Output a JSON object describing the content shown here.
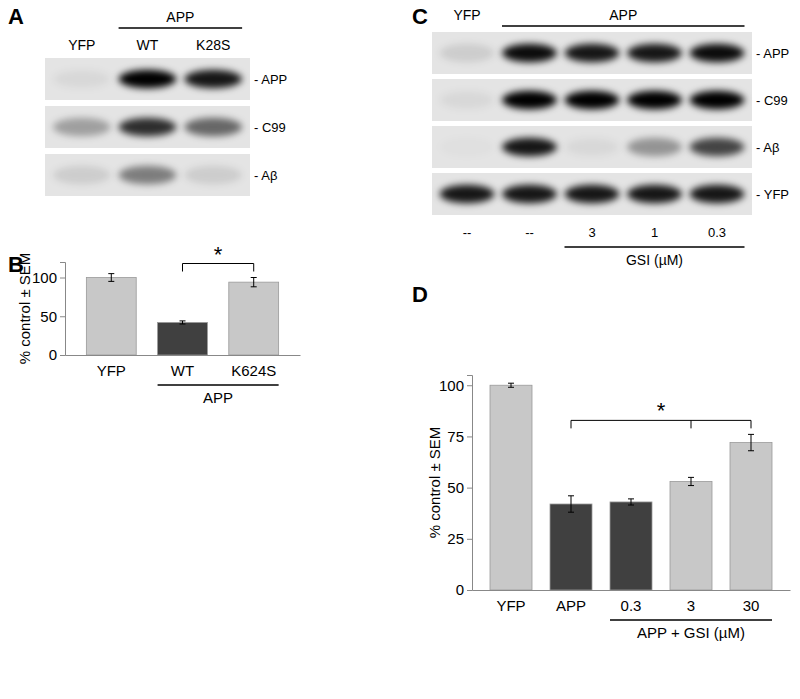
{
  "chart_data": [
    {
      "panel": "B",
      "type": "bar",
      "categories": [
        "YFP",
        "WT",
        "K624S"
      ],
      "values": [
        100,
        42,
        94
      ],
      "errors": [
        5,
        2,
        6
      ],
      "colors": [
        "#c8c8c8",
        "#404040",
        "#c8c8c8"
      ],
      "y_label": "% control ± SEM",
      "ylim": [
        0,
        120
      ],
      "yticks": [
        0,
        50,
        100
      ],
      "groups": [
        {
          "label": "APP",
          "categories": [
            "WT",
            "K624S"
          ]
        }
      ],
      "significance": [
        {
          "from": "WT",
          "to": [
            "K624S"
          ],
          "label": "*"
        }
      ]
    },
    {
      "panel": "D",
      "type": "bar",
      "categories": [
        "YFP",
        "APP",
        "0.3",
        "3",
        "30"
      ],
      "values": [
        100,
        42,
        43,
        53,
        72
      ],
      "errors": [
        1,
        4,
        1.5,
        2,
        4
      ],
      "colors": [
        "#c8c8c8",
        "#404040",
        "#404040",
        "#c8c8c8",
        "#c8c8c8"
      ],
      "y_label": "% control ± SEM",
      "ylim": [
        0,
        105
      ],
      "yticks": [
        0,
        25,
        50,
        75,
        100
      ],
      "groups": [
        {
          "label": "APP + GSI (µM)",
          "categories": [
            "0.3",
            "3",
            "30"
          ]
        }
      ],
      "significance": [
        {
          "from": "APP",
          "to": [
            "3",
            "30"
          ],
          "label": "*"
        }
      ]
    }
  ],
  "blots": [
    {
      "panel": "A",
      "top_groups": [
        {
          "label": "APP",
          "span": [
            1,
            2
          ]
        }
      ],
      "top_labels": [
        "YFP",
        "WT",
        "K28S"
      ],
      "rows": [
        {
          "label": "- APP",
          "values": [
            0.05,
            1,
            0.9
          ]
        },
        {
          "label": "- C99",
          "values": [
            0.3,
            0.8,
            0.55
          ]
        },
        {
          "label": "- Aβ",
          "values": [
            0.1,
            0.45,
            0.1
          ]
        }
      ]
    },
    {
      "panel": "C",
      "top_groups": [
        {
          "label": "YFP",
          "span": [
            0,
            0
          ]
        },
        {
          "label": "APP",
          "span": [
            1,
            4
          ]
        }
      ],
      "bottom_labels": [
        "--",
        "--",
        "3",
        "1",
        "0.3"
      ],
      "bottom_groups": [
        {
          "label": "GSI (µM)",
          "span": [
            2,
            4
          ]
        }
      ],
      "rows": [
        {
          "label": "- APP",
          "values": [
            0.1,
            0.95,
            0.9,
            0.9,
            0.95
          ]
        },
        {
          "label": "- C99",
          "values": [
            0.05,
            1,
            1,
            1,
            1
          ]
        },
        {
          "label": "- Aβ",
          "values": [
            0.02,
            0.9,
            0.05,
            0.35,
            0.7
          ]
        },
        {
          "label": "- YFP",
          "values": [
            0.9,
            0.9,
            0.9,
            0.9,
            0.9
          ]
        }
      ]
    }
  ]
}
